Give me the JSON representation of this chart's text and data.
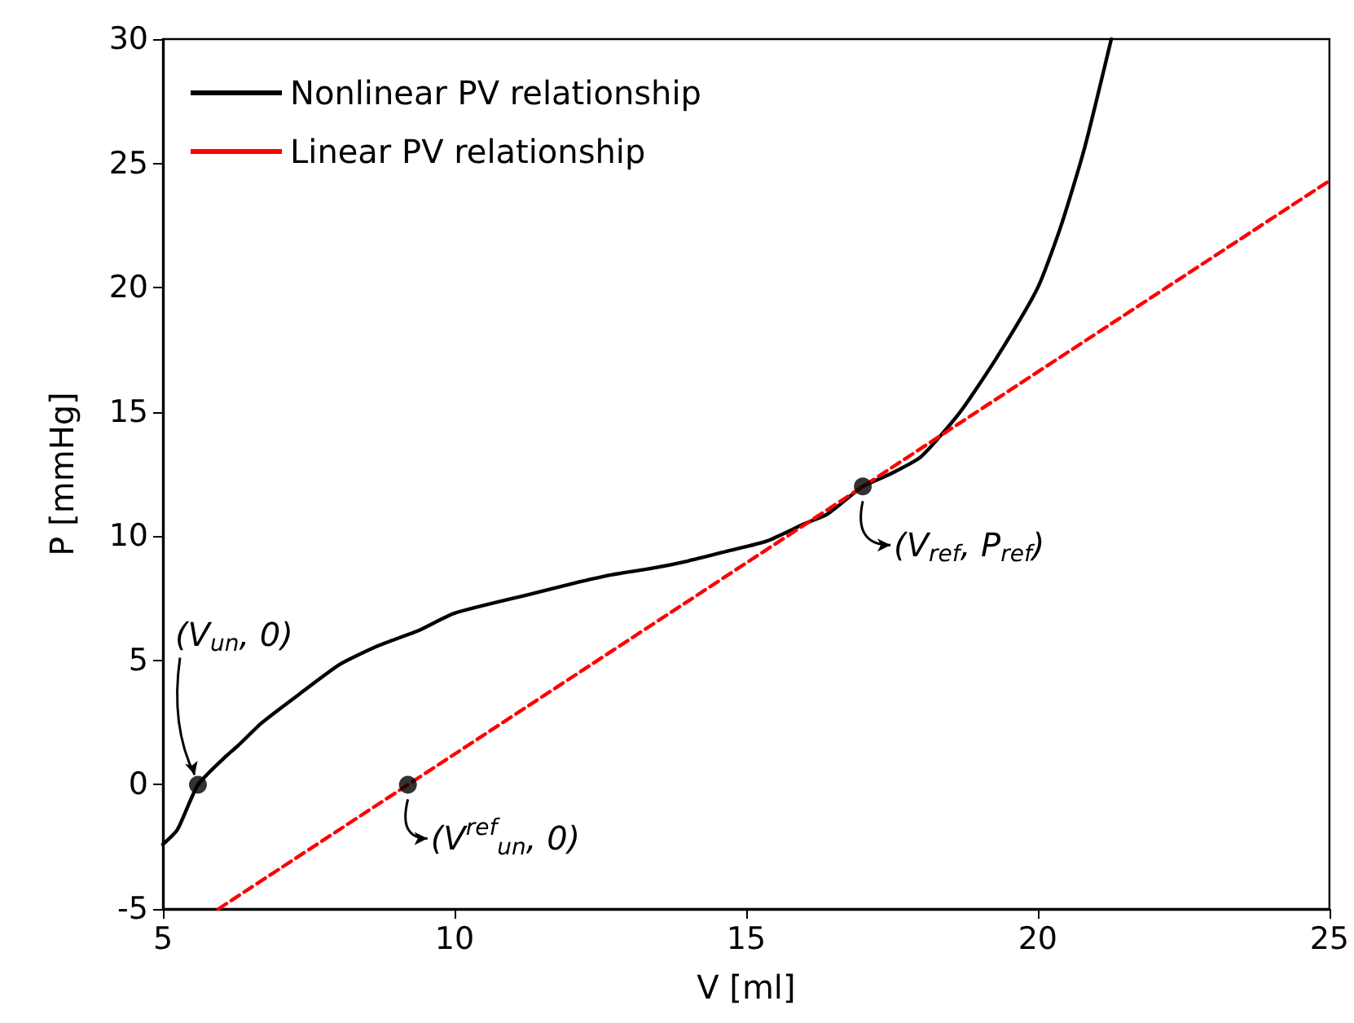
{
  "chart_data": {
    "type": "line",
    "xlabel": "V [ml]",
    "ylabel": "P [mmHg]",
    "xlim": [
      5,
      25
    ],
    "xticks": [
      5,
      10,
      15,
      20,
      25
    ],
    "ylim": [
      -5,
      30
    ],
    "yticks": [
      -5,
      0,
      5,
      10,
      15,
      20,
      25,
      30
    ],
    "legend": "top left",
    "grid": false,
    "series": [
      {
        "name": "Nonlinear PV relationship",
        "color": "#000000",
        "line_style": "solid",
        "marker": "none",
        "x": [
          5,
          5.25,
          5.6,
          6.06,
          6.3,
          6.7,
          7.37,
          8.04,
          8.7,
          9.38,
          10.0,
          11.36,
          12.03,
          12.7,
          13.37,
          14.0,
          14.68,
          15.35,
          16.0,
          16.4,
          17.0,
          17.47,
          18.0,
          18.67,
          19.3,
          20.0,
          20.4,
          20.8,
          21.26
        ],
        "values": [
          -2.4,
          -1.8,
          0,
          1.1,
          1.6,
          2.5,
          3.7,
          4.85,
          5.6,
          6.2,
          6.9,
          7.7,
          8.1,
          8.45,
          8.7,
          9.0,
          9.4,
          9.8,
          10.5,
          10.9,
          12.0,
          12.5,
          13.2,
          15.0,
          17.2,
          20.0,
          22.5,
          25.6,
          30
        ]
      },
      {
        "name": "Linear PV relationship",
        "color": "#ff0000",
        "line_style": "dashed",
        "marker": "none",
        "x": [
          5.95,
          25
        ],
        "values": [
          -5,
          24.3
        ]
      },
      {
        "type": "scatter",
        "color": "#000000",
        "marker": "circle",
        "x": [
          5.6,
          9.2,
          17.0
        ],
        "values": [
          0,
          0,
          12.0
        ]
      }
    ],
    "annotations": [
      {
        "text": "(V$_{un}$, 0)",
        "x": 5.6,
        "y": 0
      },
      {
        "text": "(V$^{ref}$$_{un}$, 0)",
        "x": 9.2,
        "y": 0
      },
      {
        "text": "(V$_{ref}$, P$_{ref}$)",
        "x": 17.0,
        "y": 12.0
      }
    ]
  }
}
